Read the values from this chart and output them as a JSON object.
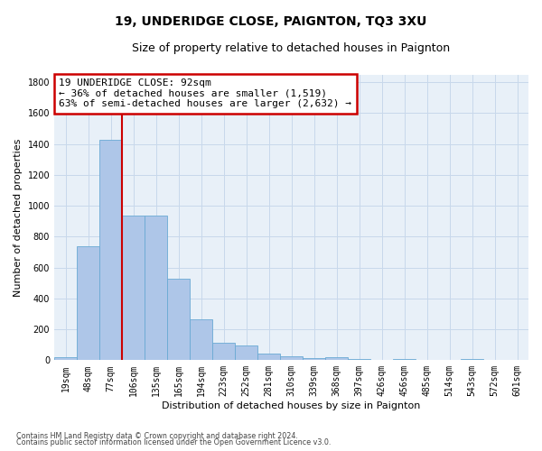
{
  "title": "19, UNDERIDGE CLOSE, PAIGNTON, TQ3 3XU",
  "subtitle": "Size of property relative to detached houses in Paignton",
  "xlabel": "Distribution of detached houses by size in Paignton",
  "ylabel": "Number of detached properties",
  "footnote1": "Contains HM Land Registry data © Crown copyright and database right 2024.",
  "footnote2": "Contains public sector information licensed under the Open Government Licence v3.0.",
  "categories": [
    "19sqm",
    "48sqm",
    "77sqm",
    "106sqm",
    "135sqm",
    "165sqm",
    "194sqm",
    "223sqm",
    "252sqm",
    "281sqm",
    "310sqm",
    "339sqm",
    "368sqm",
    "397sqm",
    "426sqm",
    "456sqm",
    "485sqm",
    "514sqm",
    "543sqm",
    "572sqm",
    "601sqm"
  ],
  "values": [
    20,
    735,
    1425,
    938,
    938,
    530,
    265,
    110,
    95,
    45,
    25,
    15,
    20,
    5,
    0,
    5,
    0,
    0,
    5,
    0,
    0
  ],
  "bar_color": "#aec6e8",
  "bar_edge_color": "#6aaad4",
  "property_bar_index": 2,
  "annotation_title": "19 UNDERIDGE CLOSE: 92sqm",
  "annotation_line1": "← 36% of detached houses are smaller (1,519)",
  "annotation_line2": "63% of semi-detached houses are larger (2,632) →",
  "vline_color": "#cc0000",
  "box_edge_color": "#cc0000",
  "ylim": [
    0,
    1850
  ],
  "yticks": [
    0,
    200,
    400,
    600,
    800,
    1000,
    1200,
    1400,
    1600,
    1800
  ],
  "grid_color": "#c8d8eb",
  "background_color": "#e8f0f8",
  "title_fontsize": 10,
  "subtitle_fontsize": 9,
  "axis_label_fontsize": 8,
  "tick_fontsize": 7,
  "annotation_fontsize": 8,
  "ylabel_fontsize": 8
}
